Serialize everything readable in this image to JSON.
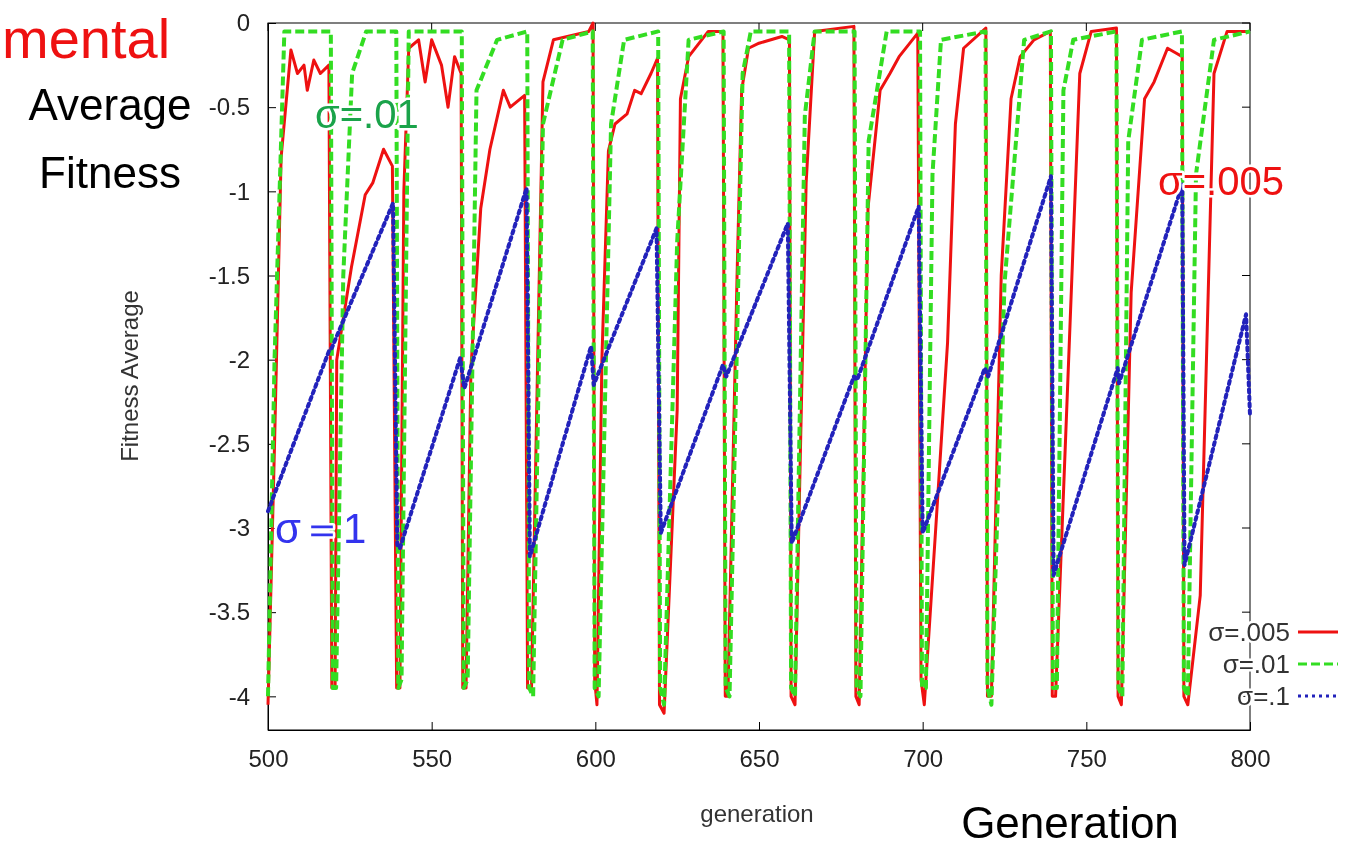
{
  "chart_data": {
    "type": "line",
    "xlabel": "generation",
    "ylabel": "Fitness Average",
    "xlim": [
      500,
      800
    ],
    "ylim": [
      -4.2,
      0
    ],
    "xticks": [
      500,
      550,
      600,
      650,
      700,
      750,
      800
    ],
    "yticks": [
      0,
      -0.5,
      -1,
      -1.5,
      -2,
      -2.5,
      -3,
      -3.5,
      -4
    ],
    "grid": false,
    "legend": "bottom right",
    "annotations": [
      "mental",
      "Average Fitness",
      "σ=.01",
      "σ=.005",
      "σ＝1",
      "Generation"
    ],
    "series": [
      {
        "name": "σ=.005",
        "color": "#ee1111",
        "line_style": "solid",
        "x": [
          500,
          502,
          504,
          507,
          509,
          511,
          512,
          514,
          516,
          518.6,
          519.5,
          520.5,
          521,
          525.5,
          529.7,
          532,
          535.3,
          538,
          539.3,
          540.3,
          541.5,
          543,
          546,
          548,
          550,
          553,
          555,
          557,
          559,
          559.5,
          560.5,
          562,
          565,
          567.8,
          571.9,
          574,
          578.4,
          579.3,
          580.5,
          581.8,
          584,
          587.2,
          598,
          599.3,
          599.8,
          600.5,
          602,
          604,
          606,
          609.7,
          612,
          614,
          617,
          619,
          619.6,
          621,
          625,
          626,
          628.5,
          634.5,
          639,
          639.7,
          640.5,
          643.3,
          644.7,
          646.8,
          650,
          657,
          659.3,
          659.8,
          661,
          664.4,
          667,
          679,
          679.6,
          680.6,
          683.3,
          687,
          690,
          692.8,
          698.5,
          699.5,
          700.5,
          704,
          707.6,
          710,
          712.5,
          719.3,
          719.8,
          721,
          724,
          727,
          729.8,
          734,
          739,
          739.6,
          740.6,
          744,
          748,
          751.5,
          759.2,
          759.7,
          760.7,
          763.7,
          767.8,
          770.7,
          774.8,
          777.5,
          779.3,
          779.8,
          781,
          784.8,
          789,
          793,
          800
        ],
        "values": [
          -4.05,
          -2.5,
          -0.8,
          -0.16,
          -0.3,
          -0.25,
          -0.4,
          -0.22,
          -0.3,
          -0.25,
          -3.95,
          -3.95,
          -2,
          -1.45,
          -1.02,
          -0.95,
          -0.75,
          -0.85,
          -3.95,
          -3.95,
          -1,
          -0.15,
          -0.1,
          -0.35,
          -0.1,
          -0.25,
          -0.5,
          -0.2,
          -0.3,
          -3.95,
          -3.95,
          -2.05,
          -1.1,
          -0.75,
          -0.4,
          -0.5,
          -0.43,
          -3.95,
          -3.95,
          -2.6,
          -0.35,
          -0.1,
          -0.05,
          0,
          -3.9,
          -4.05,
          -2,
          -0.76,
          -0.6,
          -0.54,
          -0.4,
          -0.42,
          -0.3,
          -0.21,
          -4.05,
          -4.1,
          -2.3,
          -0.45,
          -0.2,
          -0.05,
          -0.05,
          -4,
          -4,
          -1.5,
          -0.4,
          -0.15,
          -0.12,
          -0.08,
          -0.1,
          -4,
          -4.05,
          -0.95,
          -0.05,
          -0.02,
          -4,
          -4.05,
          -1.1,
          -0.4,
          -0.3,
          -0.2,
          -0.06,
          -3.9,
          -4.05,
          -3,
          -1.9,
          -0.6,
          -0.15,
          -0.03,
          -4,
          -4,
          -1.5,
          -0.45,
          -0.2,
          -0.1,
          -0.05,
          -4,
          -4,
          -2.3,
          -0.3,
          -0.05,
          -0.03,
          -4,
          -4.05,
          -1.6,
          -0.45,
          -0.35,
          -0.15,
          -0.18,
          -0.2,
          -4,
          -4.05,
          -3.4,
          -0.3,
          -0.05,
          -0.05
        ]
      },
      {
        "name": "σ=.01",
        "color": "#33dd22",
        "line_style": "dashed",
        "x": [
          500,
          502,
          505,
          519.2,
          519.8,
          520.8,
          523,
          525.7,
          530,
          539.2,
          539.8,
          540.8,
          543,
          559.2,
          559.8,
          561,
          563.7,
          570,
          579.2,
          579.8,
          581,
          584,
          590,
          599.2,
          599.8,
          601,
          604.8,
          608.8,
          619.2,
          619.8,
          621,
          625,
          628.5,
          639.2,
          639.8,
          641,
          645,
          647.5,
          659.2,
          659.8,
          661,
          664,
          667,
          679.2,
          679.8,
          681,
          683.5,
          689,
          699.2,
          699.8,
          701,
          703,
          705.6,
          719.2,
          719.8,
          721,
          725,
          731,
          739.2,
          739.8,
          741,
          743,
          746,
          759.2,
          759.8,
          761,
          762.8,
          767,
          779.2,
          779.8,
          781,
          783.5,
          789,
          800
        ],
        "values": [
          -4,
          -2,
          -0.05,
          -0.05,
          -3.95,
          -3.95,
          -1.5,
          -0.3,
          -0.05,
          -0.05,
          -3.95,
          -3.9,
          -0.05,
          -0.05,
          -3.95,
          -3.9,
          -0.4,
          -0.1,
          -0.05,
          -3.95,
          -4,
          -0.6,
          -0.1,
          -0.05,
          -3.95,
          -4,
          -0.6,
          -0.1,
          -0.05,
          -3.95,
          -4.05,
          -1.3,
          -0.1,
          -0.05,
          -3.95,
          -4,
          -0.3,
          -0.05,
          -0.05,
          -3.95,
          -4,
          -0.55,
          -0.05,
          -0.05,
          -3.95,
          -4,
          -0.7,
          -0.05,
          -0.05,
          -3.95,
          -3.95,
          -0.9,
          -0.1,
          -0.05,
          -3.95,
          -4.05,
          -1.55,
          -0.1,
          -0.05,
          -3.95,
          -3.95,
          -0.4,
          -0.1,
          -0.05,
          -3.95,
          -4,
          -0.7,
          -0.1,
          -0.05,
          -3.95,
          -4,
          -0.9,
          -0.1,
          -0.05
        ]
      },
      {
        "name": "σ=.1",
        "color": "#2222bb",
        "line_style": "dotted",
        "x": [
          500,
          518.6,
          519.5,
          538.2,
          539.5,
          540.3,
          558.7,
          560,
          579,
          580,
          598.7,
          599.5,
          618.7,
          620,
          639,
          640,
          658.8,
          660,
          679,
          680,
          698.8,
          700,
          719,
          720,
          739.2,
          740,
          759.6,
          760,
          779.3,
          780,
          798.8,
          800
        ],
        "values": [
          -2.9,
          -1.95,
          -1.93,
          -1.07,
          -3.1,
          -3.12,
          -1.99,
          -2.17,
          -0.98,
          -3.17,
          -1.92,
          -2.15,
          -1.22,
          -3.03,
          -2.03,
          -2.1,
          -1.19,
          -3.09,
          -2.1,
          -2.12,
          -1.09,
          -3.03,
          -2.05,
          -2.1,
          -0.91,
          -3.28,
          -2.05,
          -2.14,
          -0.96,
          -3.22,
          -1.73,
          -2.33
        ]
      }
    ]
  }
}
